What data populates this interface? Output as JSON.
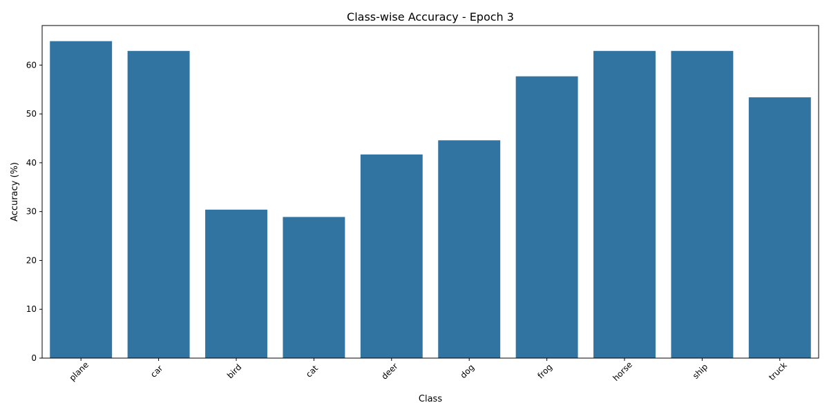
{
  "chart_data": {
    "type": "bar",
    "title": "Class-wise Accuracy - Epoch 3",
    "xlabel": "Class",
    "ylabel": "Accuracy (%)",
    "categories": [
      "plane",
      "car",
      "bird",
      "cat",
      "deer",
      "dog",
      "frog",
      "horse",
      "ship",
      "truck"
    ],
    "values": [
      64.9,
      62.9,
      30.4,
      28.9,
      41.7,
      44.6,
      57.7,
      62.9,
      62.9,
      53.4
    ],
    "ylim": [
      0,
      68.1
    ],
    "yticks": [
      0,
      10,
      20,
      30,
      40,
      50,
      60
    ],
    "grid": false,
    "bar_color": "#3274a1"
  }
}
